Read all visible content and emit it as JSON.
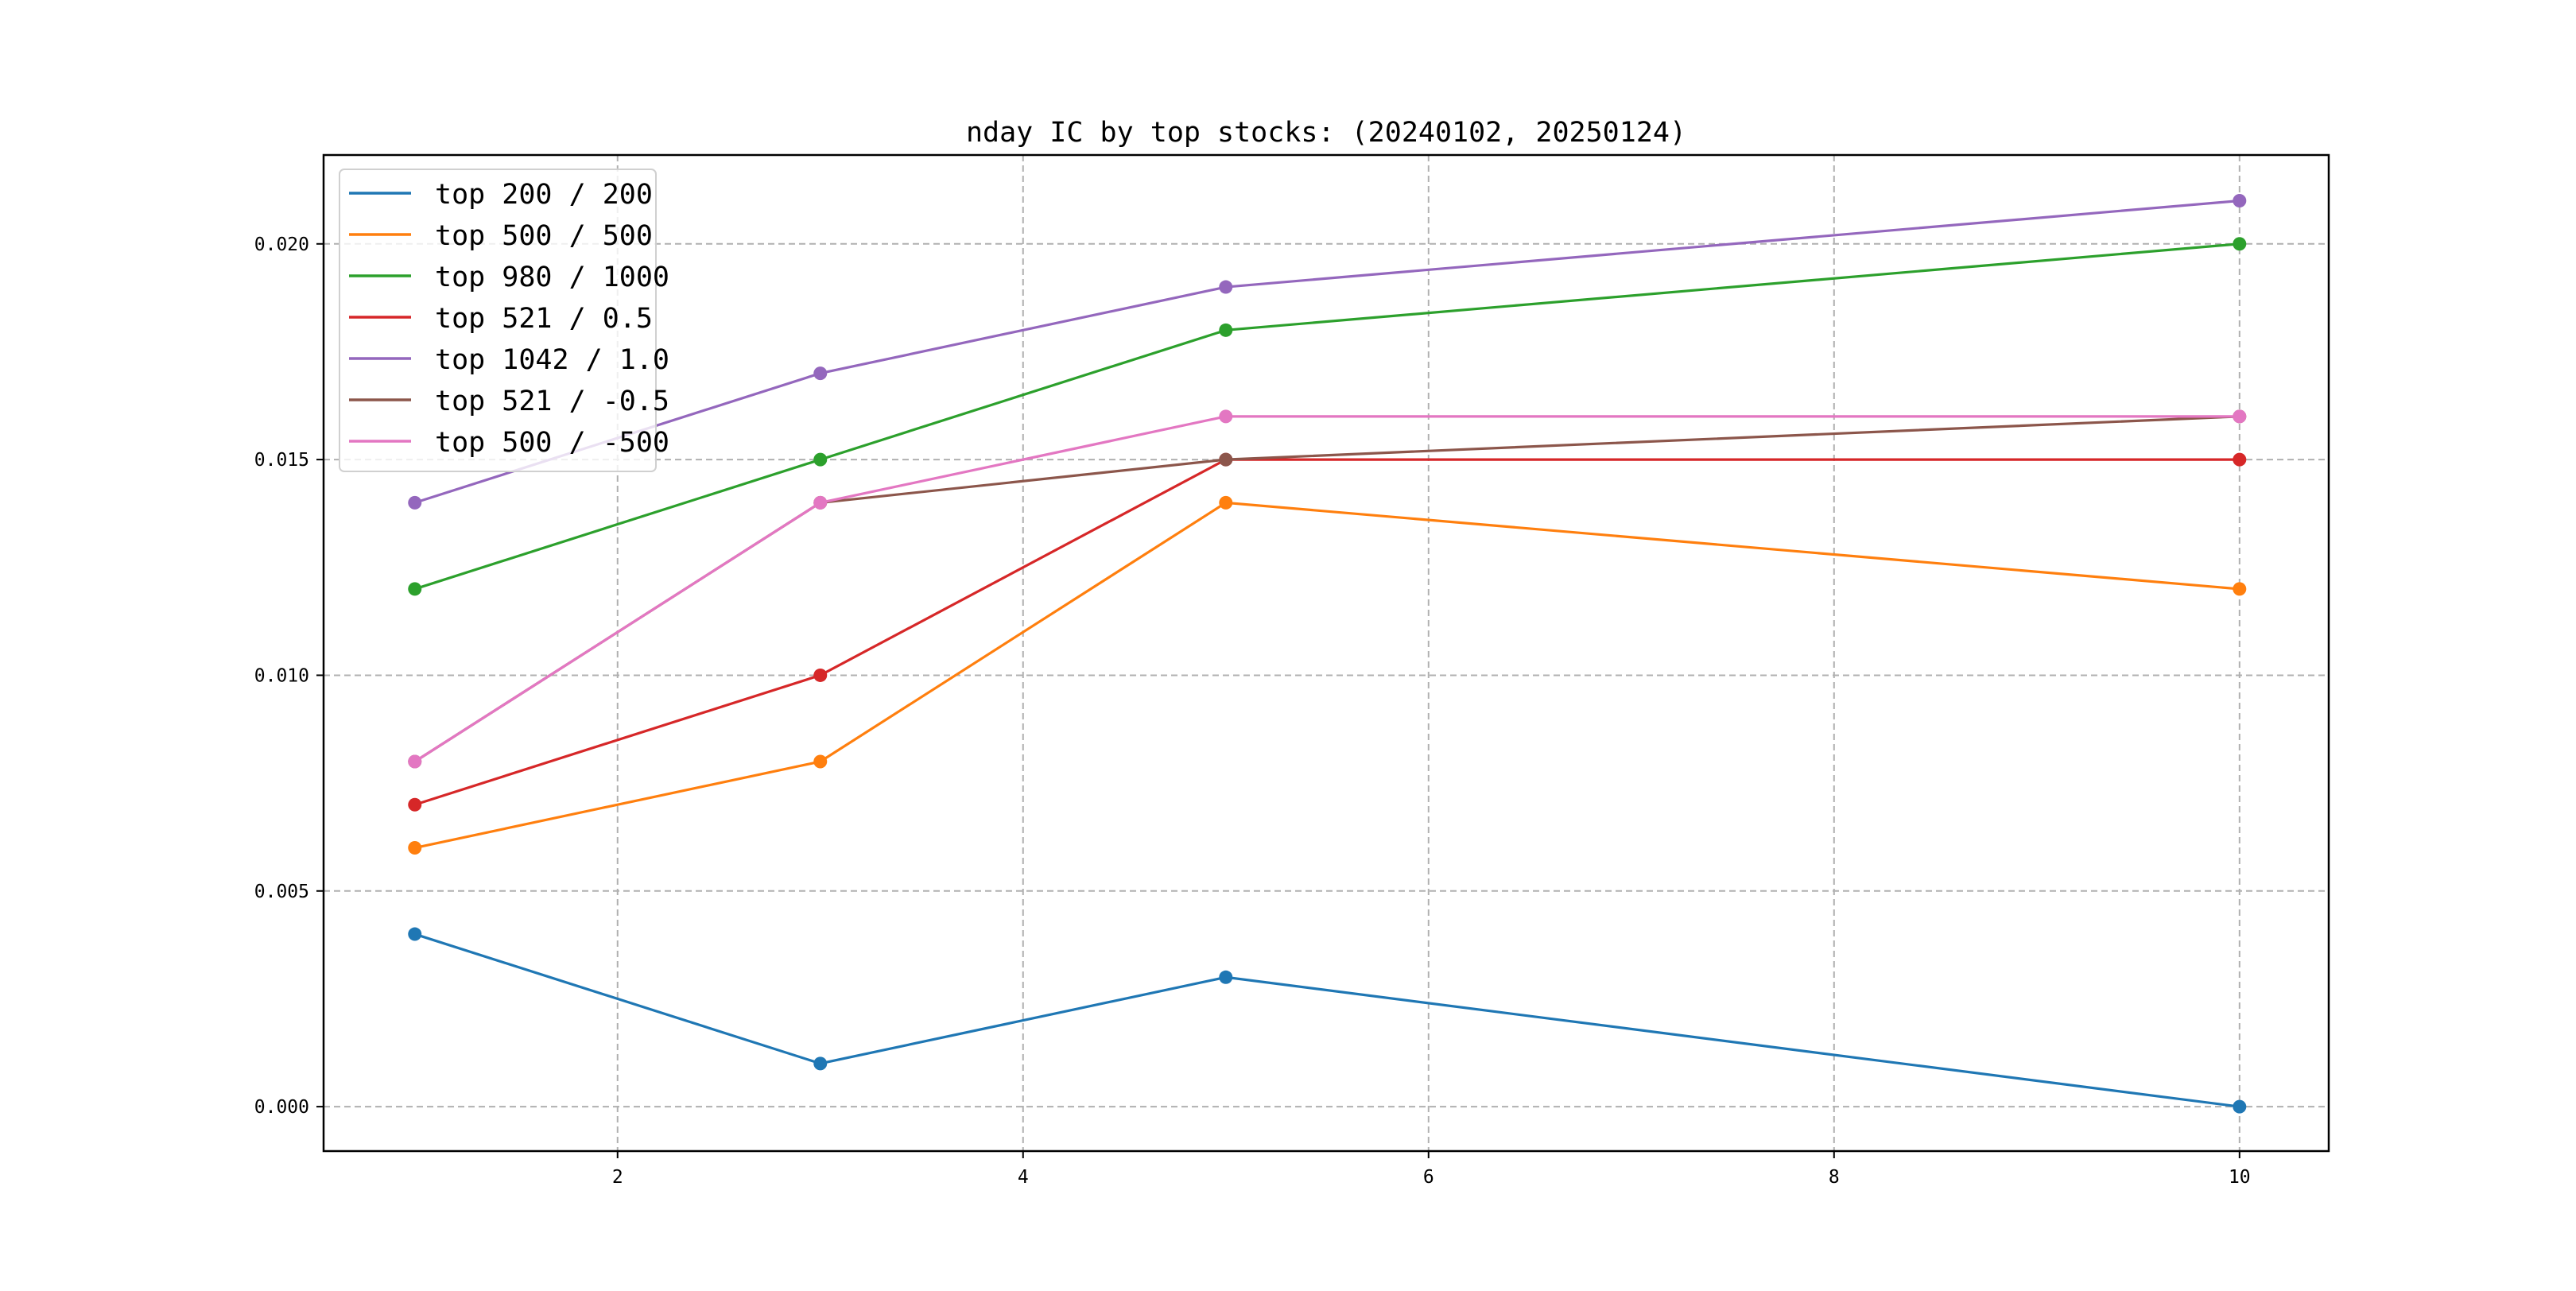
{
  "chart_data": {
    "type": "line",
    "title": "nday IC by top stocks: (20240102, 20250124)",
    "xlabel": "",
    "ylabel": "",
    "x": [
      1,
      3,
      5,
      10
    ],
    "xlim": [
      0.55,
      10.44
    ],
    "ylim": [
      -0.00103,
      0.02206
    ],
    "xticks": [
      2,
      4,
      6,
      8,
      10
    ],
    "xtick_labels": [
      "2",
      "4",
      "6",
      "8",
      "10"
    ],
    "yticks": [
      0.0,
      0.005,
      0.01,
      0.015,
      0.02
    ],
    "ytick_labels": [
      "0.000",
      "0.005",
      "0.010",
      "0.015",
      "0.020"
    ],
    "grid": true,
    "legend_position": "upper-left",
    "series": [
      {
        "name": "top 200 / 200",
        "color": "#1f77b4",
        "values": [
          0.004,
          0.001,
          0.003,
          0.0
        ]
      },
      {
        "name": "top 500 / 500",
        "color": "#ff7f0e",
        "values": [
          0.006,
          0.008,
          0.014,
          0.012
        ]
      },
      {
        "name": "top 980 / 1000",
        "color": "#2ca02c",
        "values": [
          0.012,
          0.015,
          0.018,
          0.02
        ]
      },
      {
        "name": "top 521 / 0.5",
        "color": "#d62728",
        "values": [
          0.007,
          0.01,
          0.015,
          0.015
        ]
      },
      {
        "name": "top 1042 / 1.0",
        "color": "#9467bd",
        "values": [
          0.014,
          0.017,
          0.019,
          0.021
        ]
      },
      {
        "name": "top 521 / -0.5",
        "color": "#8c564b",
        "values": [
          0.008,
          0.014,
          0.015,
          0.016
        ]
      },
      {
        "name": "top 500 / -500",
        "color": "#e377c2",
        "values": [
          0.008,
          0.014,
          0.016,
          0.016
        ]
      }
    ]
  }
}
